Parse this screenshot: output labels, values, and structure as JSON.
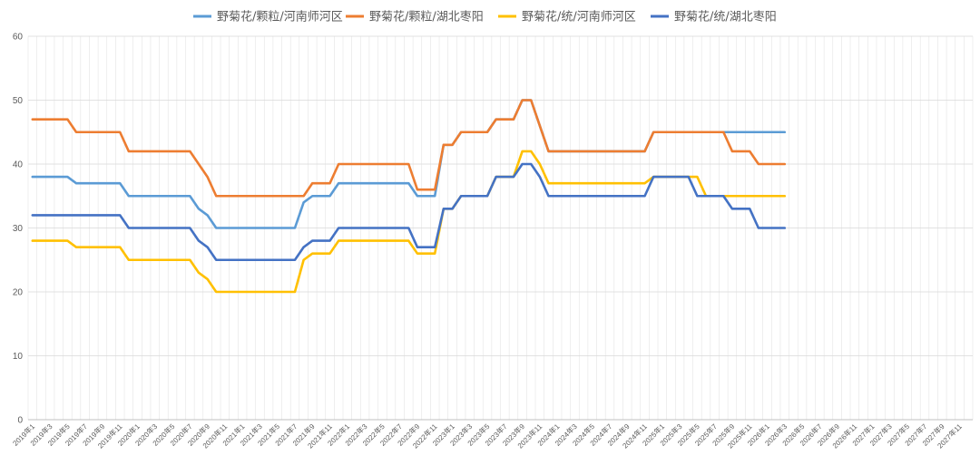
{
  "chart_data": {
    "type": "line",
    "title": "",
    "xlabel": "",
    "ylabel": "",
    "ylim": [
      0,
      60
    ],
    "yticks": [
      0,
      10,
      20,
      30,
      40,
      50,
      60
    ],
    "grid": true,
    "legend_position": "top",
    "x_range": [
      "2019年1",
      "2027年12"
    ],
    "x_tick_labels": [
      "2019年1",
      "2019年3",
      "2019年5",
      "2019年7",
      "2019年9",
      "2019年11",
      "2020年1",
      "2020年3",
      "2020年5",
      "2020年7",
      "2020年9",
      "2020年11",
      "2021年1",
      "2021年3",
      "2021年5",
      "2021年7",
      "2021年9",
      "2021年11",
      "2022年1",
      "2022年3",
      "2022年5",
      "2022年7",
      "2022年9",
      "2022年11",
      "2023年1",
      "2023年3",
      "2023年5",
      "2023年7",
      "2023年9",
      "2023年11",
      "2024年1",
      "2024年3",
      "2024年5",
      "2024年7",
      "2024年9",
      "2024年11",
      "2025年1",
      "2025年3",
      "2025年5",
      "2025年7",
      "2025年9",
      "2025年11",
      "2026年1",
      "2026年3",
      "2026年5",
      "2026年7",
      "2026年9",
      "2026年11",
      "2027年1",
      "2027年3",
      "2027年5",
      "2027年7",
      "2027年9",
      "2027年11"
    ],
    "series": [
      {
        "name": "野菊花/颗粒/河南师河区",
        "color": "#5B9BD5",
        "points": [
          [
            "2019年1",
            38
          ],
          [
            "2019年5",
            38
          ],
          [
            "2019年6",
            37
          ],
          [
            "2019年11",
            37
          ],
          [
            "2019年12",
            35
          ],
          [
            "2020年7",
            35
          ],
          [
            "2020年8",
            33
          ],
          [
            "2020年9",
            32
          ],
          [
            "2020年10",
            30
          ],
          [
            "2021年7",
            30
          ],
          [
            "2021年8",
            34
          ],
          [
            "2021年9",
            35
          ],
          [
            "2021年11",
            35
          ],
          [
            "2021年12",
            37
          ],
          [
            "2022年8",
            37
          ],
          [
            "2022年9",
            35
          ],
          [
            "2022年11",
            35
          ],
          [
            "2022年12",
            43
          ],
          [
            "2023年1",
            43
          ],
          [
            "2023年2",
            45
          ],
          [
            "2023年5",
            45
          ],
          [
            "2023年6",
            47
          ],
          [
            "2023年8",
            47
          ],
          [
            "2023年9",
            50
          ],
          [
            "2023年10",
            50
          ],
          [
            "2023年12",
            42
          ],
          [
            "2024年11",
            42
          ],
          [
            "2024年12",
            45
          ],
          [
            "2026年3",
            45
          ]
        ]
      },
      {
        "name": "野菊花/颗粒/湖北枣阳",
        "color": "#ED7D31",
        "points": [
          [
            "2019年1",
            47
          ],
          [
            "2019年5",
            47
          ],
          [
            "2019年6",
            45
          ],
          [
            "2019年11",
            45
          ],
          [
            "2019年12",
            42
          ],
          [
            "2020年7",
            42
          ],
          [
            "2020年9",
            38
          ],
          [
            "2020年10",
            35
          ],
          [
            "2021年8",
            35
          ],
          [
            "2021年9",
            37
          ],
          [
            "2021年11",
            37
          ],
          [
            "2021年12",
            40
          ],
          [
            "2022年8",
            40
          ],
          [
            "2022年9",
            36
          ],
          [
            "2022年11",
            36
          ],
          [
            "2022年12",
            43
          ],
          [
            "2023年1",
            43
          ],
          [
            "2023年2",
            45
          ],
          [
            "2023年5",
            45
          ],
          [
            "2023年6",
            47
          ],
          [
            "2023年8",
            47
          ],
          [
            "2023年9",
            50
          ],
          [
            "2023年10",
            50
          ],
          [
            "2023年12",
            42
          ],
          [
            "2024年11",
            42
          ],
          [
            "2024年12",
            45
          ],
          [
            "2025年8",
            45
          ],
          [
            "2025年9",
            42
          ],
          [
            "2025年11",
            42
          ],
          [
            "2025年12",
            40
          ],
          [
            "2026年3",
            40
          ]
        ]
      },
      {
        "name": "野菊花/统/河南师河区",
        "color": "#FFC000",
        "points": [
          [
            "2019年1",
            28
          ],
          [
            "2019年5",
            28
          ],
          [
            "2019年6",
            27
          ],
          [
            "2019年11",
            27
          ],
          [
            "2019年12",
            25
          ],
          [
            "2020年7",
            25
          ],
          [
            "2020年8",
            23
          ],
          [
            "2020年9",
            22
          ],
          [
            "2020年10",
            20
          ],
          [
            "2021年7",
            20
          ],
          [
            "2021年8",
            25
          ],
          [
            "2021年9",
            26
          ],
          [
            "2021年11",
            26
          ],
          [
            "2021年12",
            28
          ],
          [
            "2022年8",
            28
          ],
          [
            "2022年9",
            26
          ],
          [
            "2022年11",
            26
          ],
          [
            "2022年12",
            33
          ],
          [
            "2023年1",
            33
          ],
          [
            "2023年2",
            35
          ],
          [
            "2023年5",
            35
          ],
          [
            "2023年6",
            38
          ],
          [
            "2023年8",
            38
          ],
          [
            "2023年9",
            42
          ],
          [
            "2023年10",
            42
          ],
          [
            "2023年11",
            40
          ],
          [
            "2023年12",
            37
          ],
          [
            "2024年11",
            37
          ],
          [
            "2024年12",
            38
          ],
          [
            "2025年5",
            38
          ],
          [
            "2025年6",
            35
          ],
          [
            "2026年3",
            35
          ]
        ]
      },
      {
        "name": "野菊花/统/湖北枣阳",
        "color": "#4472C4",
        "points": [
          [
            "2019年1",
            32
          ],
          [
            "2019年11",
            32
          ],
          [
            "2019年12",
            30
          ],
          [
            "2020年7",
            30
          ],
          [
            "2020年8",
            28
          ],
          [
            "2020年9",
            27
          ],
          [
            "2020年10",
            25
          ],
          [
            "2021年7",
            25
          ],
          [
            "2021年8",
            27
          ],
          [
            "2021年9",
            28
          ],
          [
            "2021年11",
            28
          ],
          [
            "2021年12",
            30
          ],
          [
            "2022年8",
            30
          ],
          [
            "2022年9",
            27
          ],
          [
            "2022年11",
            27
          ],
          [
            "2022年12",
            33
          ],
          [
            "2023年1",
            33
          ],
          [
            "2023年2",
            35
          ],
          [
            "2023年5",
            35
          ],
          [
            "2023年6",
            38
          ],
          [
            "2023年8",
            38
          ],
          [
            "2023年9",
            40
          ],
          [
            "2023年10",
            40
          ],
          [
            "2023年11",
            38
          ],
          [
            "2023年12",
            35
          ],
          [
            "2024年11",
            35
          ],
          [
            "2024年12",
            38
          ],
          [
            "2025年4",
            38
          ],
          [
            "2025年5",
            35
          ],
          [
            "2025年8",
            35
          ],
          [
            "2025年9",
            33
          ],
          [
            "2025年11",
            33
          ],
          [
            "2025年12",
            30
          ],
          [
            "2026年3",
            30
          ]
        ]
      }
    ]
  }
}
